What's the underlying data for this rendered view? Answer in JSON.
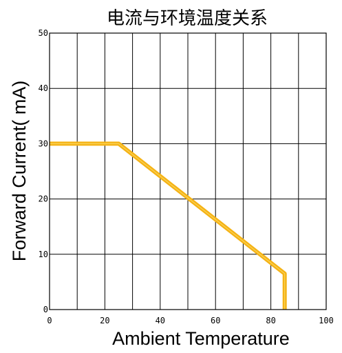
{
  "chart_data": {
    "type": "line",
    "title": "电流与环境温度关系",
    "xlabel": "Ambient Temperature",
    "ylabel": "Forward Current(  mA)",
    "xlim": [
      0,
      100
    ],
    "ylim": [
      0,
      50
    ],
    "x_ticks": [
      "0",
      "20",
      "40",
      "60",
      "80",
      "100"
    ],
    "y_ticks": [
      "0",
      "10",
      "20",
      "30",
      "40",
      "50"
    ],
    "grid": true,
    "grid_x_step": 10,
    "grid_y_step": 10,
    "series": [
      {
        "color": "#f5b316",
        "x": [
          0,
          25,
          85,
          85
        ],
        "y": [
          30,
          30,
          6.5,
          0
        ]
      }
    ]
  }
}
